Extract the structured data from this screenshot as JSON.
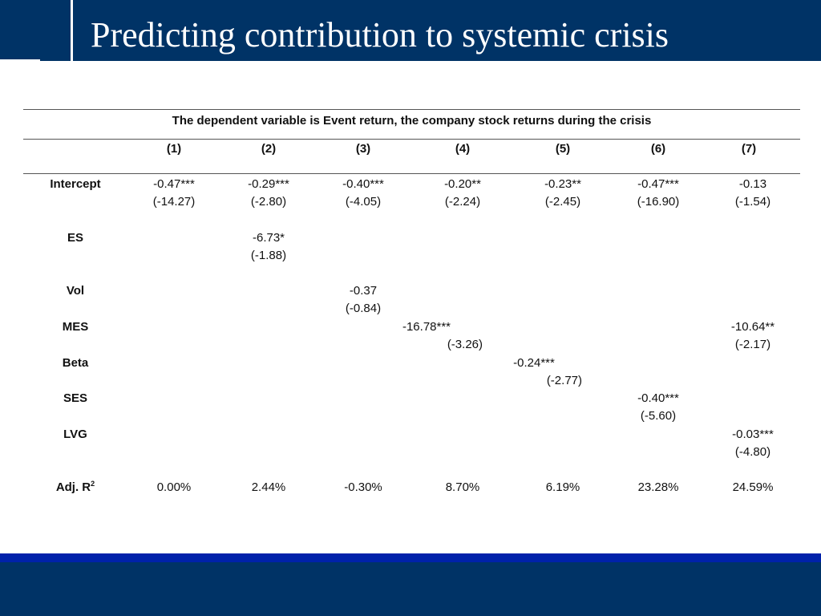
{
  "title": "Predicting contribution to systemic crisis",
  "table": {
    "caption": "The dependent variable is Event return, the company stock returns during the crisis",
    "columns": [
      "(1)",
      "(2)",
      "(3)",
      "(4)",
      "(5)",
      "(6)",
      "(7)"
    ],
    "rows": {
      "intercept": {
        "label": "Intercept",
        "coef": [
          "-0.47***",
          "-0.29***",
          "-0.40***",
          "-0.20**",
          "-0.23**",
          "-0.47***",
          "-0.13"
        ],
        "t": [
          "(-14.27)",
          "(-2.80)",
          "(-4.05)",
          "(-2.24)",
          "(-2.45)",
          "(-16.90)",
          "(-1.54)"
        ]
      },
      "es": {
        "label": "ES",
        "coef": "-6.73*",
        "t": "(-1.88)"
      },
      "vol": {
        "label": "Vol",
        "coef": "-0.37",
        "t": "(-0.84)"
      },
      "mes": {
        "label": "MES",
        "coef_4": "-16.78***",
        "t_4": "(-3.26)",
        "coef_7": "-10.64**",
        "t_7": "(-2.17)"
      },
      "beta": {
        "label": "Beta",
        "coef": "-0.24***",
        "t": "(-2.77)"
      },
      "ses": {
        "label": "SES",
        "coef": "-0.40***",
        "t": "(-5.60)"
      },
      "lvg": {
        "label": "LVG",
        "coef": "-0.03***",
        "t": "(-4.80)"
      },
      "adjr2": {
        "label": "Adj. R",
        "label_sup": "2",
        "values": [
          "0.00%",
          "2.44%",
          "-0.30%",
          "8.70%",
          "6.19%",
          "23.28%",
          "24.59%"
        ]
      }
    }
  }
}
